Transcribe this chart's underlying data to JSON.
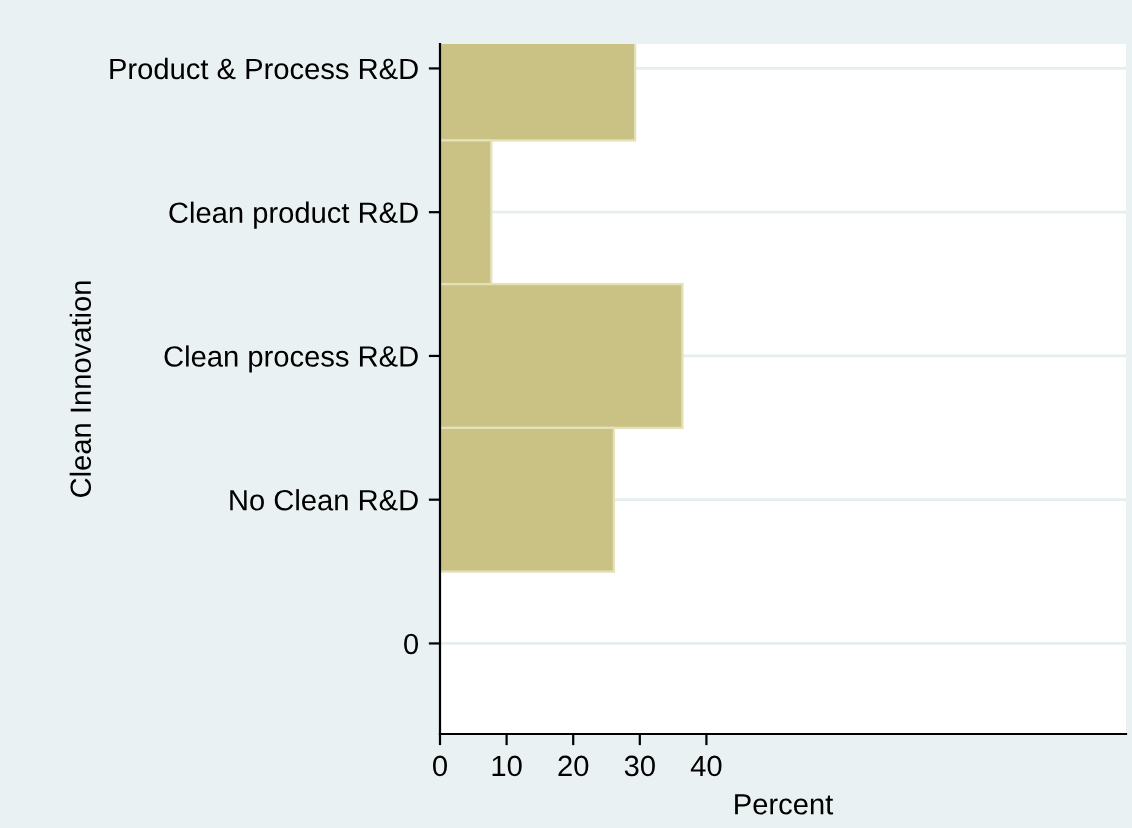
{
  "chart_data": {
    "type": "bar",
    "orientation": "horizontal",
    "xlabel": "Percent",
    "ylabel": "Clean Innovation",
    "categories": [
      "Product & Process R&D",
      "Clean product R&D",
      "Clean process R&D",
      "No Clean R&D",
      "0"
    ],
    "values": [
      29.3,
      7.7,
      36.4,
      26.1,
      null
    ],
    "color": "#c9c284",
    "xlim": [
      0,
      103
    ],
    "xticks": [
      0,
      10,
      20,
      30,
      40
    ],
    "grid": "y"
  }
}
